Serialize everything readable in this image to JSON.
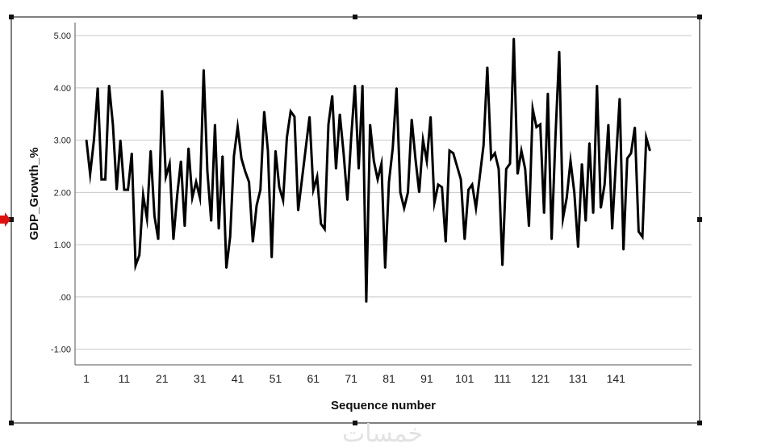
{
  "watermark": "خمسات",
  "chart_data": {
    "type": "line",
    "title": "",
    "xlabel": "Sequence number",
    "ylabel": "GDP_Growth_%",
    "xlim": [
      -2,
      161
    ],
    "ylim": [
      -1.3,
      5.25
    ],
    "y_ticks": [
      5.0,
      4.0,
      3.0,
      2.0,
      1.0,
      0.0,
      -1.0
    ],
    "y_tick_labels": [
      "5.00",
      "4.00",
      "3.00",
      "2.00",
      "1.00",
      ".00",
      "-1.00"
    ],
    "x_ticks": [
      1,
      11,
      21,
      31,
      41,
      51,
      61,
      71,
      81,
      91,
      101,
      111,
      121,
      131,
      141
    ],
    "x_tick_labels": [
      "1",
      "11",
      "21",
      "31",
      "41",
      "51",
      "61",
      "71",
      "81",
      "91",
      "101",
      "111",
      "121",
      "131",
      "141"
    ],
    "grid": "horizontal",
    "line_color": "#000000",
    "series": [
      {
        "x": [
          1,
          2,
          3,
          4,
          5,
          6,
          7,
          8,
          9,
          10,
          11,
          12,
          13,
          14,
          15,
          16,
          17,
          18,
          19,
          20,
          21,
          22,
          23,
          24,
          25,
          26,
          27,
          28,
          29,
          30,
          31,
          32,
          33,
          34,
          35,
          36,
          37,
          38,
          39,
          40,
          41,
          42,
          43,
          44,
          45,
          46,
          47,
          48,
          49,
          50,
          51,
          52,
          53,
          54,
          55,
          56,
          57,
          58,
          59,
          60,
          61,
          62,
          63,
          64,
          65,
          66,
          67,
          68,
          69,
          70,
          71,
          72,
          73,
          74,
          75,
          76,
          77,
          78,
          79,
          80,
          81,
          82,
          83,
          84,
          85,
          86,
          87,
          88,
          89,
          90,
          91,
          92,
          93,
          94,
          95,
          96,
          97,
          98,
          99,
          100,
          101,
          102,
          103,
          104,
          105,
          106,
          107,
          108,
          109,
          110,
          111,
          112,
          113,
          114,
          115,
          116,
          117,
          118,
          119,
          120,
          121,
          122,
          123,
          124,
          125,
          126,
          127,
          128,
          129,
          130,
          131,
          132,
          133,
          134,
          135,
          136,
          137,
          138,
          139,
          140,
          141,
          142,
          143,
          144,
          145,
          146,
          147,
          148,
          149,
          150
        ],
        "values": [
          3.0,
          2.35,
          3.0,
          4.0,
          2.25,
          2.25,
          4.05,
          3.3,
          2.05,
          3.0,
          2.05,
          2.05,
          2.75,
          0.6,
          0.8,
          1.95,
          1.5,
          2.8,
          1.55,
          1.1,
          3.95,
          2.3,
          2.55,
          1.1,
          1.95,
          2.6,
          1.35,
          2.85,
          1.9,
          2.2,
          1.9,
          4.35,
          2.4,
          1.45,
          3.3,
          1.3,
          2.7,
          0.55,
          1.15,
          2.7,
          3.25,
          2.65,
          2.4,
          2.2,
          1.05,
          1.75,
          2.05,
          3.55,
          2.8,
          0.75,
          2.8,
          2.1,
          1.85,
          3.05,
          3.55,
          3.45,
          1.65,
          2.25,
          2.85,
          3.45,
          2.05,
          2.3,
          1.4,
          1.3,
          3.3,
          3.85,
          2.45,
          3.5,
          2.75,
          1.85,
          3.05,
          4.05,
          2.45,
          4.05,
          -0.1,
          3.3,
          2.6,
          2.25,
          2.55,
          0.55,
          2.2,
          2.85,
          4.0,
          2.0,
          1.7,
          2.0,
          3.4,
          2.65,
          2.0,
          3.0,
          2.6,
          3.45,
          1.8,
          2.15,
          2.1,
          1.05,
          2.8,
          2.75,
          2.5,
          2.25,
          1.1,
          2.05,
          2.15,
          1.7,
          2.3,
          2.9,
          4.4,
          2.65,
          2.75,
          2.45,
          0.6,
          2.45,
          2.55,
          4.95,
          2.35,
          2.8,
          2.45,
          1.35,
          3.6,
          3.25,
          3.3,
          1.6,
          3.9,
          1.1,
          3.05,
          4.7,
          1.5,
          1.9,
          2.6,
          2.0,
          0.95,
          2.55,
          1.45,
          2.95,
          1.6,
          4.05,
          1.7,
          2.15,
          3.3,
          1.3,
          2.6,
          3.8,
          0.9,
          2.65,
          2.75,
          3.25,
          1.25,
          1.15,
          3.05,
          2.8
        ]
      }
    ]
  }
}
